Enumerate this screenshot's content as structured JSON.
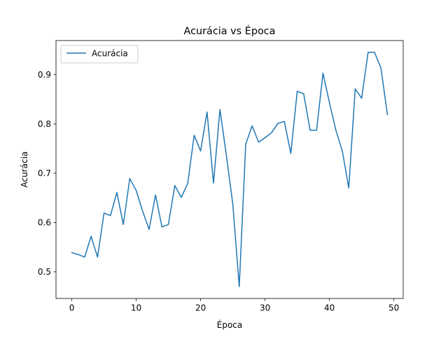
{
  "chart_data": {
    "type": "line",
    "title": "Acurácia vs Época",
    "xlabel": "Época",
    "ylabel": "Acurácia",
    "xlim": [
      -2.45,
      51.45
    ],
    "ylim": [
      0.446,
      0.969
    ],
    "xticks": [
      0,
      10,
      20,
      30,
      40,
      50
    ],
    "yticks": [
      0.5,
      0.6,
      0.7,
      0.8,
      0.9
    ],
    "xtick_labels": [
      "0",
      "10",
      "20",
      "30",
      "40",
      "50"
    ],
    "ytick_labels": [
      "0.5",
      "0.6",
      "0.7",
      "0.8",
      "0.9"
    ],
    "grid": false,
    "legend_position": "upper-left",
    "series": [
      {
        "name": "Acurácia",
        "color": "#1f77b4",
        "x": [
          0,
          1,
          2,
          3,
          4,
          5,
          6,
          7,
          8,
          9,
          10,
          11,
          12,
          13,
          14,
          15,
          16,
          17,
          18,
          19,
          20,
          21,
          22,
          23,
          24,
          25,
          26,
          27,
          28,
          29,
          30,
          31,
          32,
          33,
          34,
          35,
          36,
          37,
          38,
          39,
          40,
          41,
          42,
          43,
          44,
          45,
          46,
          47,
          48,
          49
        ],
        "values": [
          0.539,
          0.535,
          0.53,
          0.572,
          0.53,
          0.619,
          0.614,
          0.661,
          0.596,
          0.689,
          0.665,
          0.623,
          0.586,
          0.656,
          0.591,
          0.596,
          0.675,
          0.651,
          0.679,
          0.777,
          0.745,
          0.824,
          0.68,
          0.829,
          0.736,
          0.637,
          0.47,
          0.759,
          0.796,
          0.763,
          0.772,
          0.782,
          0.801,
          0.805,
          0.74,
          0.866,
          0.861,
          0.787,
          0.787,
          0.903,
          0.843,
          0.787,
          0.745,
          0.67,
          0.871,
          0.852,
          0.945,
          0.945,
          0.913,
          0.819
        ]
      }
    ]
  }
}
